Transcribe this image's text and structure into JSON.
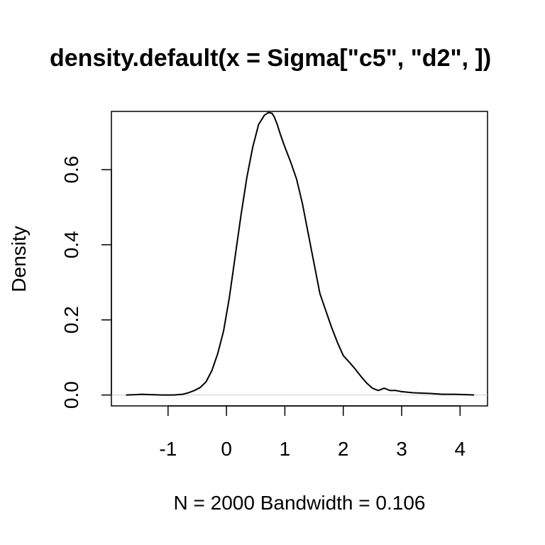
{
  "chart_data": {
    "type": "line",
    "title": "density.default(x = Sigma[\"c5\", \"d2\", ])",
    "xlabel": "N = 2000   Bandwidth = 0.106",
    "ylabel": "Density",
    "xlim": [
      -1.97,
      4.47
    ],
    "ylim": [
      -0.029,
      0.755
    ],
    "x_ticks": [
      -1,
      0,
      1,
      2,
      3,
      4
    ],
    "x_tick_labels": [
      "-1",
      "0",
      "1",
      "2",
      "3",
      "4"
    ],
    "y_ticks": [
      0.0,
      0.2,
      0.4,
      0.6
    ],
    "y_tick_labels": [
      "0.0",
      "0.2",
      "0.4",
      "0.6"
    ],
    "grid": false,
    "zero_line": true,
    "series": [
      {
        "x": [
          -1.72,
          -1.55,
          -1.45,
          -1.3,
          -1.1,
          -0.9,
          -0.75,
          -0.65,
          -0.55,
          -0.45,
          -0.35,
          -0.25,
          -0.15,
          -0.05,
          0.05,
          0.15,
          0.25,
          0.35,
          0.45,
          0.55,
          0.65,
          0.72,
          0.78,
          0.82,
          0.87,
          0.92,
          1.0,
          1.1,
          1.2,
          1.3,
          1.4,
          1.5,
          1.6,
          1.7,
          1.8,
          1.9,
          2.0,
          2.1,
          2.2,
          2.3,
          2.4,
          2.5,
          2.6,
          2.7,
          2.8,
          2.9,
          3.0,
          3.2,
          3.5,
          3.7,
          3.9,
          4.1,
          4.24
        ],
        "y": [
          0.0,
          0.001,
          0.002,
          0.001,
          0.0,
          0.0,
          0.002,
          0.006,
          0.012,
          0.02,
          0.035,
          0.065,
          0.11,
          0.17,
          0.26,
          0.37,
          0.48,
          0.58,
          0.66,
          0.72,
          0.745,
          0.752,
          0.75,
          0.74,
          0.72,
          0.695,
          0.66,
          0.62,
          0.575,
          0.51,
          0.43,
          0.35,
          0.27,
          0.225,
          0.18,
          0.14,
          0.105,
          0.088,
          0.07,
          0.05,
          0.032,
          0.018,
          0.012,
          0.018,
          0.012,
          0.012,
          0.009,
          0.006,
          0.004,
          0.002,
          0.002,
          0.001,
          0.0
        ]
      }
    ]
  }
}
